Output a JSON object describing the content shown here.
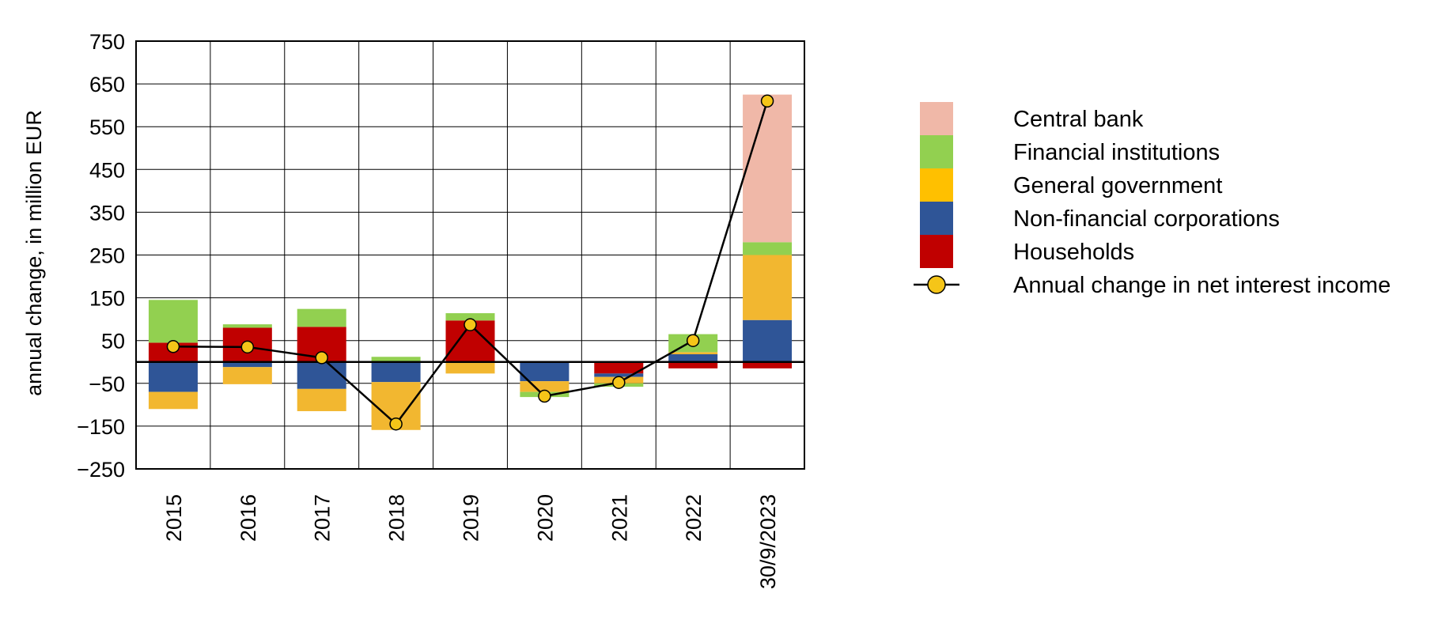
{
  "chart_data": {
    "type": "bar",
    "stacked": true,
    "title": "",
    "xlabel": "",
    "ylabel": "annual change, in million EUR",
    "ylim": [
      -250,
      750
    ],
    "yticks": [
      750,
      650,
      550,
      450,
      350,
      250,
      150,
      50,
      -50,
      -150,
      -250
    ],
    "ytick_labels": [
      "750",
      "650",
      "550",
      "450",
      "350",
      "250",
      "150",
      "50",
      "−50",
      "−150",
      "−250"
    ],
    "grid": true,
    "legend_position": "right",
    "categories": [
      "2015",
      "2016",
      "2017",
      "2018",
      "2019",
      "2020",
      "2021",
      "2022",
      "30/9/2023"
    ],
    "series": [
      {
        "name": "Households",
        "color": "#c00000",
        "values": [
          45,
          80,
          82,
          0,
          97,
          0,
          -27,
          -15,
          -15
        ]
      },
      {
        "name": "Non-financial corporations",
        "color": "#2f5597",
        "values": [
          -70,
          -12,
          -63,
          -47,
          0,
          -45,
          -8,
          18,
          98
        ]
      },
      {
        "name": "General government",
        "color": "#f2b730",
        "values": [
          -40,
          -40,
          -52,
          -112,
          -27,
          -25,
          -15,
          5,
          152
        ]
      },
      {
        "name": "Financial institutions",
        "color": "#92d050",
        "values": [
          100,
          8,
          42,
          12,
          17,
          -12,
          -8,
          42,
          30
        ]
      },
      {
        "name": "Central bank",
        "color": "#f0b8a8",
        "values": [
          0,
          0,
          0,
          0,
          0,
          0,
          0,
          0,
          345
        ]
      }
    ],
    "line": {
      "name": "Annual change in net interest income",
      "values": [
        36,
        35,
        10,
        -145,
        87,
        -80,
        -48,
        50,
        610
      ],
      "color": "#000000",
      "marker_color": "#f5c518"
    },
    "colors": {
      "negative_tick": "#c00000",
      "grid": "#000000",
      "legend_central_bank": "#f0b8a8",
      "legend_financial_institutions": "#92d050",
      "legend_general_government": "#ffc000",
      "legend_non_financial_corporations": "#2f5597",
      "legend_households": "#c00000"
    }
  }
}
